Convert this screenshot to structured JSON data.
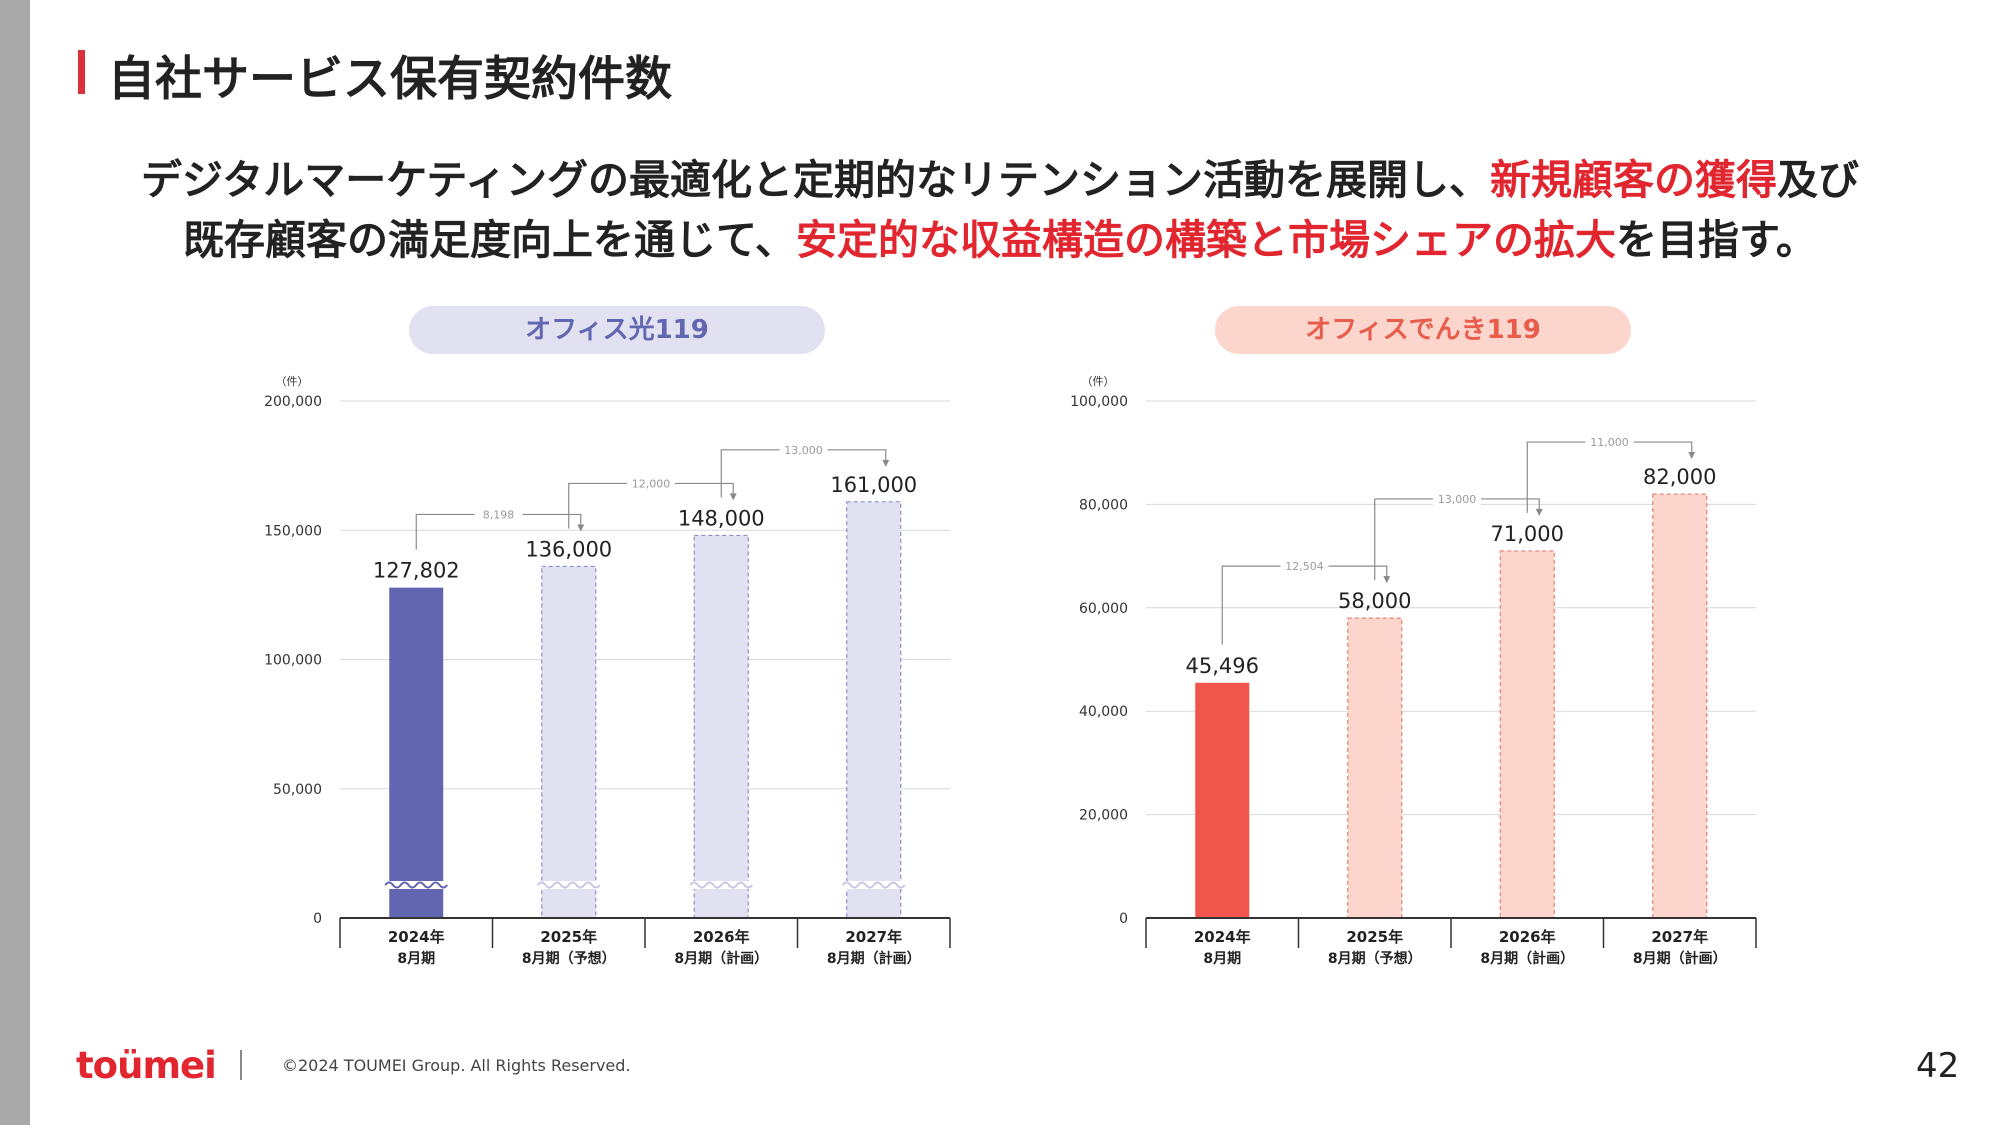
{
  "slide": {
    "title": "自社サービス保有契約件数",
    "lead_line1": [
      {
        "text": "デジタルマーケティングの最適化と定期的なリテンション活動を展開し、",
        "highlight": false
      },
      {
        "text": "新規顧客の獲得",
        "highlight": true
      },
      {
        "text": "及び",
        "highlight": false
      }
    ],
    "lead_line2": [
      {
        "text": "既存顧客の満足度向上を通じて、",
        "highlight": false
      },
      {
        "text": "安定的な収益構造の構築と市場シェアの拡大",
        "highlight": true
      },
      {
        "text": "を目指す。",
        "highlight": false
      }
    ],
    "page_number": "42"
  },
  "footer": {
    "logo": "toümei",
    "copyright": "©2024 TOUMEI Group. All Rights Reserved."
  },
  "colors": {
    "accent_red": "#e1262f",
    "hikari_actual": "#6266b0",
    "hikari_plan": "#e2e1f1",
    "hikari_plan_border": "#8d8fc6",
    "denki_actual": "#f0564c",
    "denki_plan": "#fcd6cc",
    "denki_plan_border": "#e77f72"
  },
  "chart_data": [
    {
      "type": "bar",
      "title": "オフィス光119",
      "unit_label": "（件）",
      "categories": [
        {
          "year": "2024年",
          "period": "8月期"
        },
        {
          "year": "2025年",
          "period": "8月期（予想）"
        },
        {
          "year": "2026年",
          "period": "8月期（計画）"
        },
        {
          "year": "2027年",
          "period": "8月期（計画）"
        }
      ],
      "values": [
        127802,
        136000,
        148000,
        161000
      ],
      "value_labels": [
        "127,802",
        "136,000",
        "148,000",
        "161,000"
      ],
      "bar_kinds": [
        "actual",
        "plan",
        "plan",
        "plan"
      ],
      "yticks": [
        0,
        50000,
        100000,
        150000,
        200000
      ],
      "ytick_labels": [
        "0",
        "50,000",
        "100,000",
        "150,000",
        "200,000"
      ],
      "ylim": [
        0,
        200000
      ],
      "axis_break": true,
      "increments": [
        "8,198",
        "12,000",
        "13,000"
      ]
    },
    {
      "type": "bar",
      "title": "オフィスでんき119",
      "unit_label": "（件）",
      "categories": [
        {
          "year": "2024年",
          "period": "8月期"
        },
        {
          "year": "2025年",
          "period": "8月期（予想）"
        },
        {
          "year": "2026年",
          "period": "8月期（計画）"
        },
        {
          "year": "2027年",
          "period": "8月期（計画）"
        }
      ],
      "values": [
        45496,
        58000,
        71000,
        82000
      ],
      "value_labels": [
        "45,496",
        "58,000",
        "71,000",
        "82,000"
      ],
      "bar_kinds": [
        "actual",
        "plan",
        "plan",
        "plan"
      ],
      "yticks": [
        0,
        20000,
        40000,
        60000,
        80000,
        100000
      ],
      "ytick_labels": [
        "0",
        "20,000",
        "40,000",
        "60,000",
        "80,000",
        "100,000"
      ],
      "ylim": [
        0,
        100000
      ],
      "axis_break": false,
      "increments": [
        "12,504",
        "13,000",
        "11,000"
      ]
    }
  ]
}
